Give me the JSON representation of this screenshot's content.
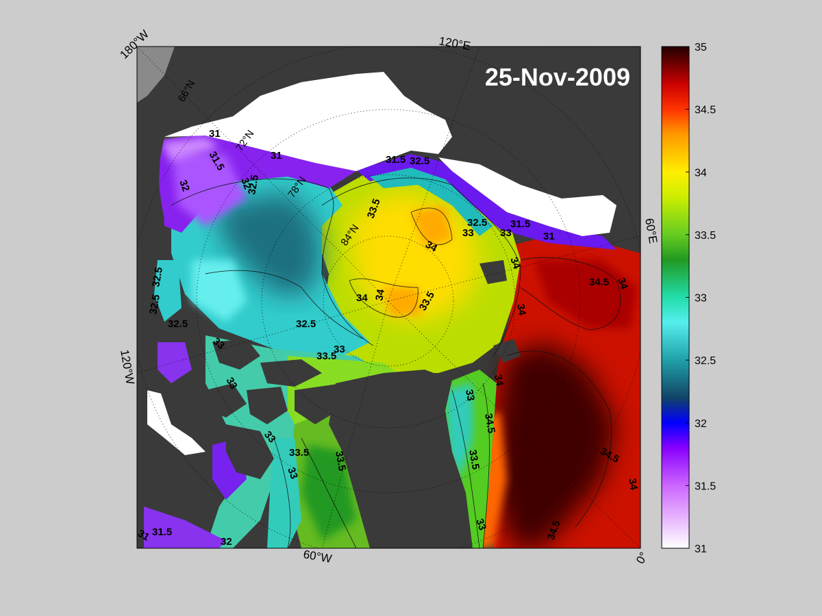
{
  "map": {
    "date_label": "25-Nov-2009",
    "meridian_labels": {
      "top_left": "180°W",
      "top": "120°E",
      "right": "60°E",
      "left": "120°W",
      "bottom": "60°W",
      "bottom_right": "0°"
    },
    "parallel_labels": [
      "66°N",
      "72°N",
      "78°N",
      "84°N"
    ],
    "contour_labels": [
      "31",
      "31.5",
      "32",
      "32.5",
      "33",
      "33.5",
      "34",
      "34.5"
    ],
    "colors": {
      "land": "#3a3a3a",
      "ice": "#ffffff",
      "outside": "#888888",
      "frame": "#000000"
    }
  },
  "colorbar": {
    "min": 31,
    "max": 35,
    "ticks": [
      "35",
      "34.5",
      "34",
      "33.5",
      "33",
      "32.5",
      "32",
      "31.5",
      "31"
    ],
    "tick_values": [
      35,
      34.5,
      34,
      33.5,
      33,
      32.5,
      32,
      31.5,
      31
    ],
    "stops": [
      {
        "value": 31.0,
        "color": "#ffffff"
      },
      {
        "value": 31.5,
        "color": "#cc66ff"
      },
      {
        "value": 31.8,
        "color": "#8800ff"
      },
      {
        "value": 32.0,
        "color": "#0000ff"
      },
      {
        "value": 32.2,
        "color": "#114466"
      },
      {
        "value": 32.5,
        "color": "#20a0a8"
      },
      {
        "value": 32.8,
        "color": "#55eeee"
      },
      {
        "value": 33.0,
        "color": "#22ddaa"
      },
      {
        "value": 33.3,
        "color": "#229922"
      },
      {
        "value": 33.5,
        "color": "#66cc22"
      },
      {
        "value": 33.8,
        "color": "#ccee00"
      },
      {
        "value": 34.0,
        "color": "#ffee00"
      },
      {
        "value": 34.3,
        "color": "#ff9900"
      },
      {
        "value": 34.5,
        "color": "#ff3300"
      },
      {
        "value": 34.7,
        "color": "#cc0000"
      },
      {
        "value": 35.0,
        "color": "#220000"
      }
    ]
  }
}
